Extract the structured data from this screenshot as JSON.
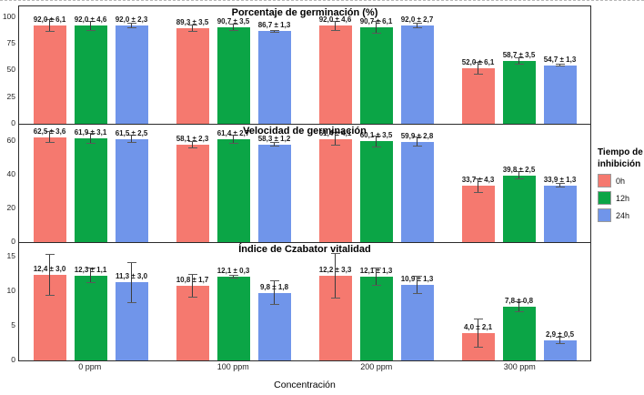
{
  "chart_data": {
    "type": "bar",
    "xlabel": "Concentración",
    "categories": [
      "0 ppm",
      "100 ppm",
      "200 ppm",
      "300 ppm"
    ],
    "legend_title": "Tiempo de inhibición",
    "legend_title_line1": "Tiempo de",
    "legend_title_line2": "inhibición",
    "series_names": [
      "0h",
      "12h",
      "24h"
    ],
    "colors": {
      "0h": "#F5796F",
      "12h": "#0BA546",
      "24h": "#7095EA"
    },
    "grid": false,
    "legend_position": "right",
    "facets": [
      {
        "title": "Porcentaje de germinación (%)",
        "yticks": [
          0,
          25,
          50,
          75,
          100
        ],
        "ylim": [
          0,
          110
        ],
        "series": [
          {
            "name": "0h",
            "values": [
              92.0,
              89.3,
              92.0,
              52.0
            ],
            "errors": [
              6.1,
              3.5,
              4.6,
              6.1
            ]
          },
          {
            "name": "12h",
            "values": [
              92.0,
              90.7,
              90.7,
              58.7
            ],
            "errors": [
              4.6,
              3.5,
              6.1,
              3.5
            ]
          },
          {
            "name": "24h",
            "values": [
              92.0,
              86.7,
              92.0,
              54.7
            ],
            "errors": [
              2.3,
              1.3,
              2.7,
              1.3
            ]
          }
        ]
      },
      {
        "title": "Velocidad de germinación",
        "yticks": [
          0,
          20,
          40,
          60
        ],
        "ylim": [
          0,
          70
        ],
        "series": [
          {
            "name": "0h",
            "values": [
              62.5,
              58.1,
              61.4,
              33.7
            ],
            "errors": [
              3.6,
              2.3,
              4.1,
              4.3
            ]
          },
          {
            "name": "12h",
            "values": [
              61.9,
              61.4,
              60.1,
              39.8
            ],
            "errors": [
              3.1,
              2.7,
              3.5,
              2.5
            ]
          },
          {
            "name": "24h",
            "values": [
              61.5,
              58.3,
              59.9,
              33.9
            ],
            "errors": [
              2.5,
              1.2,
              2.8,
              1.3
            ]
          }
        ]
      },
      {
        "title": "Índice de Czabator vitalidad",
        "yticks": [
          0,
          5,
          10,
          15
        ],
        "ylim": [
          0,
          17
        ],
        "series": [
          {
            "name": "0h",
            "values": [
              12.4,
              10.8,
              12.2,
              4.0
            ],
            "errors": [
              3.0,
              1.7,
              3.3,
              2.1
            ]
          },
          {
            "name": "12h",
            "values": [
              12.3,
              12.1,
              12.1,
              7.8
            ],
            "errors": [
              1.1,
              0.3,
              1.3,
              0.8
            ]
          },
          {
            "name": "24h",
            "values": [
              11.3,
              9.8,
              10.9,
              2.9
            ],
            "errors": [
              3.0,
              1.8,
              1.3,
              0.5
            ]
          }
        ]
      }
    ]
  }
}
